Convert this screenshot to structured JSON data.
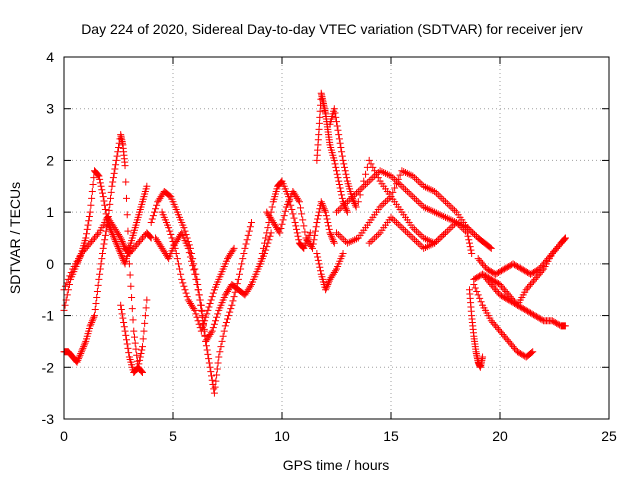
{
  "chart_data": {
    "type": "scatter",
    "title": "Day 224 of 2020, Sidereal Day-to-day VTEC variation (SDTVAR) for receiver jerv",
    "xlabel": "GPS time / hours",
    "ylabel": "SDTVAR / TECUs",
    "xlim": [
      0,
      25
    ],
    "ylim": [
      -3,
      4
    ],
    "xticks": [
      "0",
      "5",
      "10",
      "15",
      "20",
      "25"
    ],
    "yticks": [
      "-3",
      "-2",
      "-1",
      "0",
      "1",
      "2",
      "3",
      "4"
    ],
    "grid": true,
    "marker": "+",
    "color": "#ff0000",
    "series": [
      {
        "name": "s1",
        "x": [
          0.0,
          0.3,
          0.6,
          0.8,
          1.0,
          1.2,
          1.4,
          1.6,
          1.8,
          2.0,
          2.2,
          2.4,
          2.6,
          2.8,
          3.0,
          3.2,
          3.4,
          3.6,
          3.8
        ],
        "y": [
          -0.9,
          -0.3,
          0.0,
          0.2,
          0.5,
          1.0,
          1.8,
          1.7,
          1.3,
          0.8,
          0.6,
          0.4,
          0.2,
          0.0,
          0.3,
          0.6,
          0.9,
          1.2,
          1.5
        ]
      },
      {
        "name": "s2",
        "x": [
          0.0,
          0.2,
          0.4,
          0.6,
          0.8,
          1.0,
          1.2,
          1.4,
          1.6,
          1.8,
          2.0,
          2.2,
          2.4,
          2.6,
          2.7,
          2.8,
          3.0,
          3.2,
          3.4,
          3.6
        ],
        "y": [
          -1.7,
          -1.7,
          -1.8,
          -1.9,
          -1.7,
          -1.5,
          -1.2,
          -1.0,
          -0.3,
          0.3,
          0.8,
          1.5,
          2.0,
          2.5,
          2.3,
          1.9,
          0.0,
          -1.3,
          -2.0,
          -2.1
        ]
      },
      {
        "name": "s3",
        "x": [
          0.0,
          0.4,
          0.8,
          1.2,
          1.6,
          2.0,
          2.3,
          2.6,
          2.8,
          3.0,
          3.4,
          3.8,
          4.0
        ],
        "y": [
          -0.5,
          -0.1,
          0.2,
          0.4,
          0.6,
          0.9,
          0.7,
          0.5,
          0.3,
          0.2,
          0.4,
          0.6,
          0.5
        ]
      },
      {
        "name": "s4",
        "x": [
          2.6,
          2.8,
          3.0,
          3.2,
          3.4,
          3.6,
          3.8
        ],
        "y": [
          -0.8,
          -1.3,
          -1.8,
          -2.1,
          -2.0,
          -1.6,
          -0.7
        ]
      },
      {
        "name": "s5",
        "x": [
          4.0,
          4.3,
          4.6,
          4.9,
          5.2,
          5.5,
          5.8,
          6.1,
          6.3,
          6.5,
          6.8,
          7.1,
          7.4,
          7.7,
          8.0,
          8.3,
          8.6,
          8.9,
          9.2,
          9.5
        ],
        "y": [
          0.8,
          1.2,
          1.4,
          1.3,
          1.0,
          0.7,
          0.3,
          -0.3,
          -0.9,
          -1.5,
          -1.3,
          -0.9,
          -0.6,
          -0.4,
          -0.5,
          -0.6,
          -0.4,
          -0.1,
          0.2,
          0.6
        ]
      },
      {
        "name": "s6",
        "x": [
          4.2,
          4.5,
          4.8,
          5.1,
          5.4,
          5.7,
          6.0,
          6.3,
          6.5,
          6.7,
          6.9,
          7.1,
          7.4,
          7.7,
          8.0,
          8.3,
          8.6
        ],
        "y": [
          0.5,
          0.3,
          0.1,
          0.4,
          0.6,
          0.3,
          -0.2,
          -0.8,
          -1.5,
          -2.0,
          -2.5,
          -1.8,
          -1.2,
          -0.8,
          -0.3,
          0.3,
          0.8
        ]
      },
      {
        "name": "s7",
        "x": [
          4.5,
          4.8,
          5.1,
          5.4,
          5.7,
          6.0,
          6.3,
          6.6,
          6.9,
          7.2,
          7.5,
          7.8
        ],
        "y": [
          1.0,
          0.7,
          0.3,
          -0.3,
          -0.7,
          -0.9,
          -1.3,
          -0.9,
          -0.5,
          -0.2,
          0.1,
          0.3
        ]
      },
      {
        "name": "s8",
        "x": [
          9.3,
          9.6,
          9.9,
          10.2,
          10.5,
          10.8,
          11.1,
          11.4,
          11.6,
          11.8,
          12.0,
          12.2,
          12.4
        ],
        "y": [
          1.0,
          0.8,
          0.6,
          1.1,
          1.4,
          1.2,
          0.5,
          0.3,
          0.8,
          1.2,
          1.0,
          0.6,
          0.4
        ]
      },
      {
        "name": "s9",
        "x": [
          9.0,
          9.3,
          9.6,
          9.8,
          10.0,
          10.3,
          10.6,
          10.8,
          11.0,
          11.3
        ],
        "y": [
          0.0,
          0.6,
          1.2,
          1.5,
          1.6,
          1.3,
          0.8,
          0.4,
          0.3,
          0.6
        ]
      },
      {
        "name": "s10",
        "x": [
          11.6,
          11.7,
          11.8,
          11.9,
          12.0,
          12.1,
          12.2,
          12.4,
          12.6,
          12.8,
          13.0
        ],
        "y": [
          2.0,
          2.6,
          3.3,
          3.1,
          2.9,
          2.6,
          2.3,
          2.0,
          1.6,
          1.2,
          1.0
        ]
      },
      {
        "name": "s11",
        "x": [
          12.2,
          12.4,
          12.6,
          12.8,
          13.0,
          13.2,
          13.4
        ],
        "y": [
          2.7,
          3.0,
          2.5,
          2.0,
          1.6,
          1.3,
          1.1
        ]
      },
      {
        "name": "s12",
        "x": [
          11.6,
          11.8,
          12.0,
          12.2,
          12.5,
          12.8
        ],
        "y": [
          0.2,
          -0.2,
          -0.5,
          -0.3,
          -0.1,
          0.2
        ]
      },
      {
        "name": "s13",
        "x": [
          12.5,
          13.0,
          13.5,
          14.0,
          14.5,
          15.0,
          15.5,
          16.0,
          16.5,
          17.0,
          17.5,
          18.0,
          18.5,
          19.0
        ],
        "y": [
          1.0,
          1.2,
          1.4,
          1.6,
          1.8,
          1.7,
          1.5,
          1.3,
          1.1,
          1.0,
          0.9,
          0.8,
          0.7,
          0.5
        ]
      },
      {
        "name": "s14",
        "x": [
          12.5,
          13.0,
          13.5,
          14.0,
          14.5,
          15.0,
          15.5,
          16.0,
          16.5,
          17.0,
          17.5
        ],
        "y": [
          0.6,
          0.4,
          0.5,
          0.8,
          1.1,
          1.3,
          1.0,
          0.7,
          0.5,
          0.4,
          0.6
        ]
      },
      {
        "name": "s15",
        "x": [
          13.5,
          14.0,
          14.5,
          15.0,
          15.5,
          16.0,
          16.5,
          17.0,
          17.5,
          18.0,
          18.5,
          19.0,
          19.3,
          19.6
        ],
        "y": [
          1.2,
          2.0,
          1.6,
          1.3,
          1.8,
          1.7,
          1.5,
          1.4,
          1.2,
          1.0,
          0.7,
          0.5,
          0.4,
          0.3
        ]
      },
      {
        "name": "s16",
        "x": [
          14.0,
          14.5,
          15.0,
          15.5,
          16.0,
          16.5,
          17.0,
          17.5,
          18.0,
          18.5,
          18.7
        ],
        "y": [
          0.4,
          0.6,
          0.9,
          0.7,
          0.5,
          0.3,
          0.4,
          0.6,
          0.8,
          0.6,
          0.2
        ]
      },
      {
        "name": "s17",
        "x": [
          18.6,
          18.7,
          18.8,
          18.9,
          19.0,
          19.1,
          19.2
        ],
        "y": [
          -0.5,
          -1.0,
          -1.4,
          -1.7,
          -1.9,
          -2.0,
          -1.8
        ]
      },
      {
        "name": "s18",
        "x": [
          18.8,
          19.2,
          19.6,
          20.0,
          20.4,
          20.8,
          21.2,
          21.5
        ],
        "y": [
          -0.4,
          -0.8,
          -1.1,
          -1.3,
          -1.5,
          -1.7,
          -1.8,
          -1.7
        ]
      },
      {
        "name": "s19",
        "x": [
          18.8,
          19.2,
          19.6,
          20.0,
          20.4,
          20.8,
          21.2,
          21.6,
          22.0,
          22.4,
          22.8,
          23.0
        ],
        "y": [
          -0.3,
          -0.2,
          -0.3,
          -0.4,
          -0.6,
          -0.8,
          -0.9,
          -1.0,
          -1.1,
          -1.1,
          -1.2,
          -1.2
        ]
      },
      {
        "name": "s20",
        "x": [
          19.0,
          19.4,
          19.8,
          20.2,
          20.6,
          21.0,
          21.4,
          21.8,
          22.2,
          22.6,
          23.0
        ],
        "y": [
          0.1,
          -0.1,
          -0.2,
          -0.1,
          0.0,
          -0.1,
          -0.2,
          -0.1,
          0.1,
          0.3,
          0.5
        ]
      },
      {
        "name": "s21",
        "x": [
          19.2,
          19.6,
          20.0,
          20.4,
          20.8,
          21.2,
          21.6,
          22.0,
          22.4,
          22.8,
          23.0
        ],
        "y": [
          -0.2,
          -0.4,
          -0.6,
          -0.7,
          -0.8,
          -0.5,
          -0.3,
          -0.1,
          0.2,
          0.4,
          0.5
        ]
      }
    ]
  }
}
